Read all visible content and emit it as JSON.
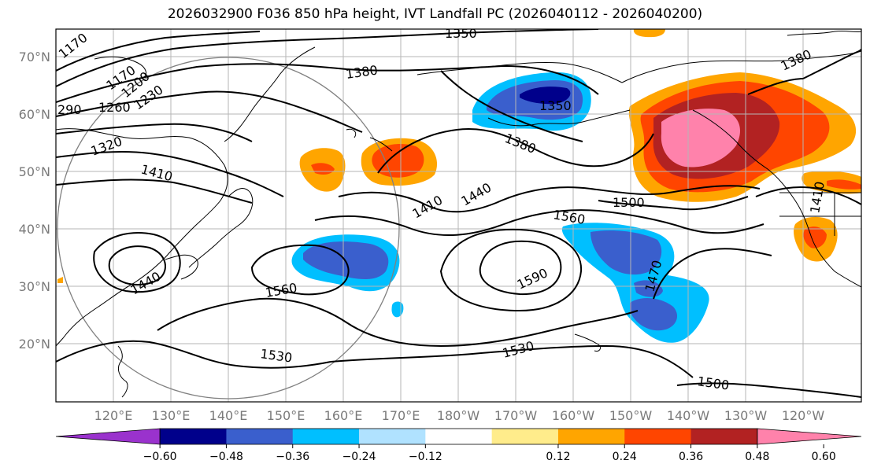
{
  "title": "2026032900 F036 850 hPa height, IVT Landfall PC (2026040112 - 2026040200)",
  "latitude_labels": [
    "70°N",
    "60°N",
    "50°N",
    "40°N",
    "30°N",
    "20°N"
  ],
  "longitude_labels": [
    "120°E",
    "130°E",
    "140°E",
    "150°E",
    "160°E",
    "170°E",
    "180°W",
    "170°W",
    "160°W",
    "150°W",
    "140°W",
    "130°W",
    "120°W"
  ],
  "contour_labels": [
    "1170",
    "1170",
    "1200",
    "1230",
    "1260",
    "290",
    "1320",
    "1350",
    "1350",
    "1380",
    "1380",
    "1380",
    "1410",
    "1410",
    "1440",
    "1440",
    "1470",
    "1500",
    "1500",
    "1530",
    "1530",
    "1560",
    "1560",
    "1590",
    "1410"
  ],
  "colorbar": {
    "ticks": [
      "−0.60",
      "−0.48",
      "−0.36",
      "−0.24",
      "−0.12",
      "0.12",
      "0.24",
      "0.36",
      "0.48",
      "0.60"
    ],
    "colors": [
      "#9a32cd",
      "#00008b",
      "#3a5fcd",
      "#00bfff",
      "#b0e2ff",
      "#ffffff",
      "#ffec8b",
      "#ffa500",
      "#ff4500",
      "#b22222",
      "#ff82ab"
    ]
  },
  "shading_colors": {
    "strong_neg": "#00008b",
    "mod_neg": "#3a5fcd",
    "weak_neg": "#00bfff",
    "weak_pos": "#ffa500",
    "mod_pos": "#ff4500",
    "strong_pos": "#b22222",
    "max_pos": "#ff82ab"
  }
}
